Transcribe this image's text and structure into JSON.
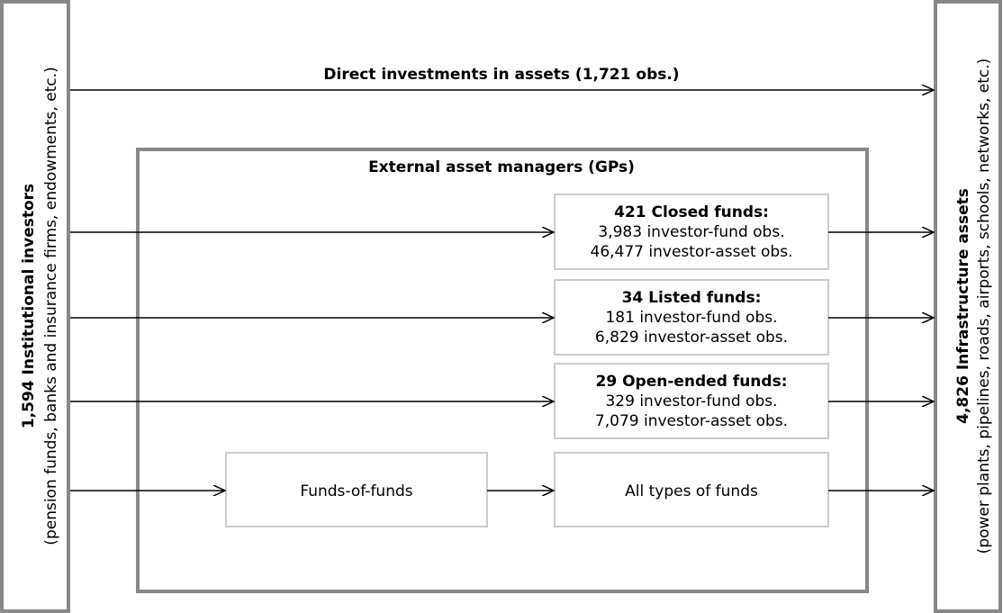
{
  "investors": {
    "title": "1,594 Institutional investors",
    "subtitle": "(pension funds, banks and insurance firms, endowments, etc.)"
  },
  "assets": {
    "title": "4,826 Infrastructure assets",
    "subtitle": "(power plants, pipelines, roads, airports, schools, networks, etc.)"
  },
  "direct_label": "Direct investments in assets (1,721 obs.)",
  "managers": {
    "title": "External asset managers (GPs)",
    "funds": [
      {
        "title": "421 Closed funds:",
        "lines": [
          "3,983 investor-fund obs.",
          "46,477 investor-asset obs."
        ]
      },
      {
        "title": "34 Listed funds:",
        "lines": [
          "181 investor-fund obs.",
          "6,829 investor-asset obs."
        ]
      },
      {
        "title": "29 Open-ended funds:",
        "lines": [
          "329 investor-fund obs.",
          "7,079 investor-asset obs."
        ]
      }
    ],
    "fund_of_funds": "Funds-of-funds",
    "all_types": "All types of funds"
  }
}
